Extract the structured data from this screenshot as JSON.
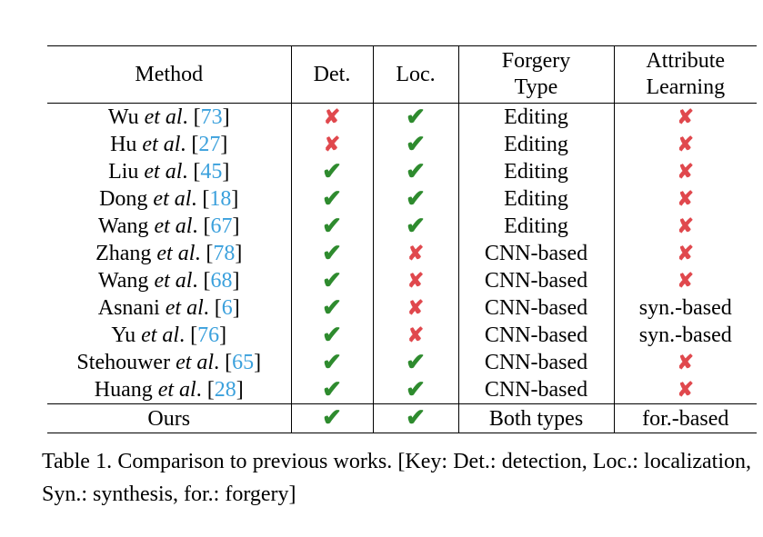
{
  "table": {
    "headers": {
      "method": "Method",
      "det": "Det.",
      "loc": "Loc.",
      "forgery_type_line1": "Forgery",
      "forgery_type_line2": "Type",
      "attr_line1": "Attribute",
      "attr_line2": "Learning"
    },
    "rows": [
      {
        "name": "Wu",
        "etal": "et al",
        "dot": ".",
        "cite": "73",
        "det": "cross",
        "loc": "check",
        "type": "Editing",
        "attr": "cross"
      },
      {
        "name": "Hu",
        "etal": "et al",
        "dot": ".",
        "cite": "27",
        "det": "cross",
        "loc": "check",
        "type": "Editing",
        "attr": "cross"
      },
      {
        "name": "Liu",
        "etal": "et al",
        "dot": ".",
        "cite": "45",
        "det": "check",
        "loc": "check",
        "type": "Editing",
        "attr": "cross"
      },
      {
        "name": "Dong",
        "etal": "et al",
        "dot": ".",
        "cite": "18",
        "det": "check",
        "loc": "check",
        "type": "Editing",
        "attr": "cross"
      },
      {
        "name": "Wang",
        "etal": "et al",
        "dot": ".",
        "cite": "67",
        "det": "check",
        "loc": "check",
        "type": "Editing",
        "attr": "cross"
      },
      {
        "name": "Zhang",
        "etal": "et al",
        "dot": ".",
        "cite": "78",
        "det": "check",
        "loc": "cross",
        "type": "CNN-based",
        "attr": "cross"
      },
      {
        "name": "Wang",
        "etal": "et al",
        "dot": ".",
        "cite": "68",
        "det": "check",
        "loc": "cross",
        "type": "CNN-based",
        "attr": "cross"
      },
      {
        "name": "Asnani",
        "etal": "et al",
        "dot": ".",
        "cite": "6",
        "det": "check",
        "loc": "cross",
        "type": "CNN-based",
        "attr": "syn.-based"
      },
      {
        "name": "Yu",
        "etal": "et al",
        "dot": ".",
        "cite": "76",
        "det": "check",
        "loc": "cross",
        "type": "CNN-based",
        "attr": "syn.-based"
      },
      {
        "name": "Stehouwer",
        "etal": "et al",
        "dot": ".",
        "cite": "65",
        "det": "check",
        "loc": "check",
        "type": "CNN-based",
        "attr": "cross"
      },
      {
        "name": "Huang",
        "etal": "et al",
        "dot": ".",
        "cite": "28",
        "det": "check",
        "loc": "check",
        "type": "CNN-based",
        "attr": "cross"
      }
    ],
    "ours": {
      "name": "Ours",
      "det": "check",
      "loc": "check",
      "type": "Both types",
      "attr": "for.-based"
    },
    "symbols": {
      "check": "✔",
      "cross": "✘"
    },
    "colors": {
      "check": "#2e8b2e",
      "cross": "#e0484d",
      "cite": "#3aa0dc"
    }
  },
  "caption": {
    "text": "Table 1.  Comparison to previous works.  [Key: Det.: detection, Loc.: localization, Syn.: synthesis, for.: forgery]"
  }
}
